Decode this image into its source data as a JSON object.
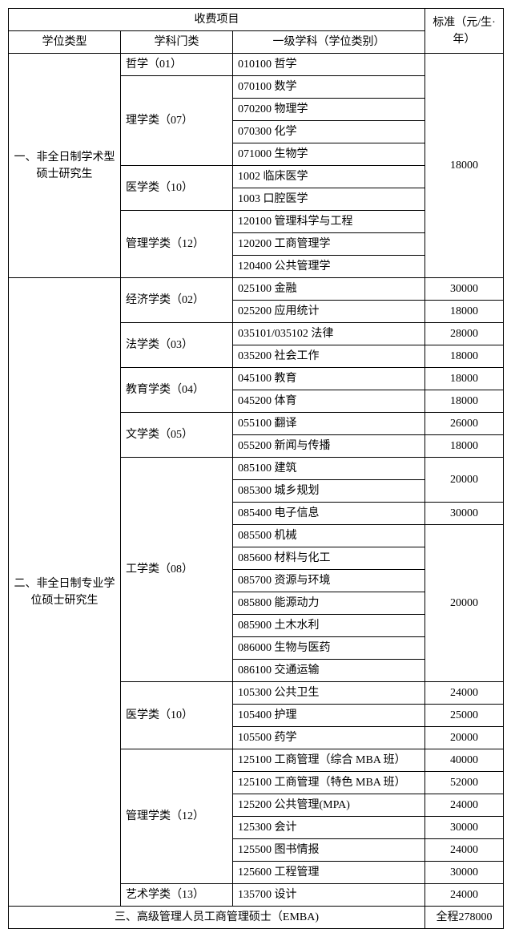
{
  "header": {
    "fee_item": "收费项目",
    "standard": "标准（元/生·年）",
    "degree_type": "学位类型",
    "subject_category": "学科门类",
    "first_discipline": "一级学科（学位类别）"
  },
  "section1": {
    "title": "一、非全日制学术型硕士研究生",
    "cat_philosophy": "哲学（01）",
    "d_010100": "010100 哲学",
    "cat_science": "理学类（07）",
    "d_070100": "070100 数学",
    "d_070200": "070200 物理学",
    "d_070300": "070300 化学",
    "d_071000": "071000 生物学",
    "cat_medicine": "医学类（10）",
    "d_1002": "1002 临床医学",
    "d_1003": "1003 口腔医学",
    "cat_management": "管理学类（12）",
    "d_120100": "120100 管理科学与工程",
    "d_120200": "120200 工商管理学",
    "d_120400": "120400 公共管理学",
    "fee": "18000"
  },
  "section2": {
    "title": "二、非全日制专业学位硕士研究生",
    "cat_economics": "经济学类（02）",
    "d_025100": "025100 金融",
    "d_025200": "025200 应用统计",
    "cat_law": "法学类（03）",
    "d_035101": "035101/035102 法律",
    "d_035200": "035200 社会工作",
    "cat_education": "教育学类（04）",
    "d_045100": "045100 教育",
    "d_045200": "045200 体育",
    "cat_literature": "文学类（05）",
    "d_055100": "055100 翻译",
    "d_055200": "055200 新闻与传播",
    "cat_engineering": "工学类（08）",
    "d_085100": "085100 建筑",
    "d_085300": "085300 城乡规划",
    "d_085400": "085400 电子信息",
    "d_085500": "085500 机械",
    "d_085600": "085600 材料与化工",
    "d_085700": "085700 资源与环境",
    "d_085800": "085800 能源动力",
    "d_085900": "085900 土木水利",
    "d_086000": "086000 生物与医药",
    "d_086100": "086100 交通运输",
    "cat_medicine": "医学类（10）",
    "d_105300": "105300 公共卫生",
    "d_105400": "105400 护理",
    "d_105500": "105500 药学",
    "cat_management": "管理学类（12）",
    "d_125100a": "125100 工商管理（综合 MBA 班）",
    "d_125100b": "125100 工商管理（特色 MBA 班）",
    "d_125200": "125200 公共管理(MPA)",
    "d_125300": "125300 会计",
    "d_125500": "125500 图书情报",
    "d_125600": "125600 工程管理",
    "cat_art": "艺术学类（13）",
    "d_135700": "135700 设计",
    "fee_30000": "30000",
    "fee_18000": "18000",
    "fee_28000": "28000",
    "fee_26000": "26000",
    "fee_20000": "20000",
    "fee_24000": "24000",
    "fee_25000": "25000",
    "fee_40000": "40000",
    "fee_52000": "52000"
  },
  "section3": {
    "title": "三、高级管理人员工商管理硕士（EMBA)",
    "fee": "全程278000"
  }
}
